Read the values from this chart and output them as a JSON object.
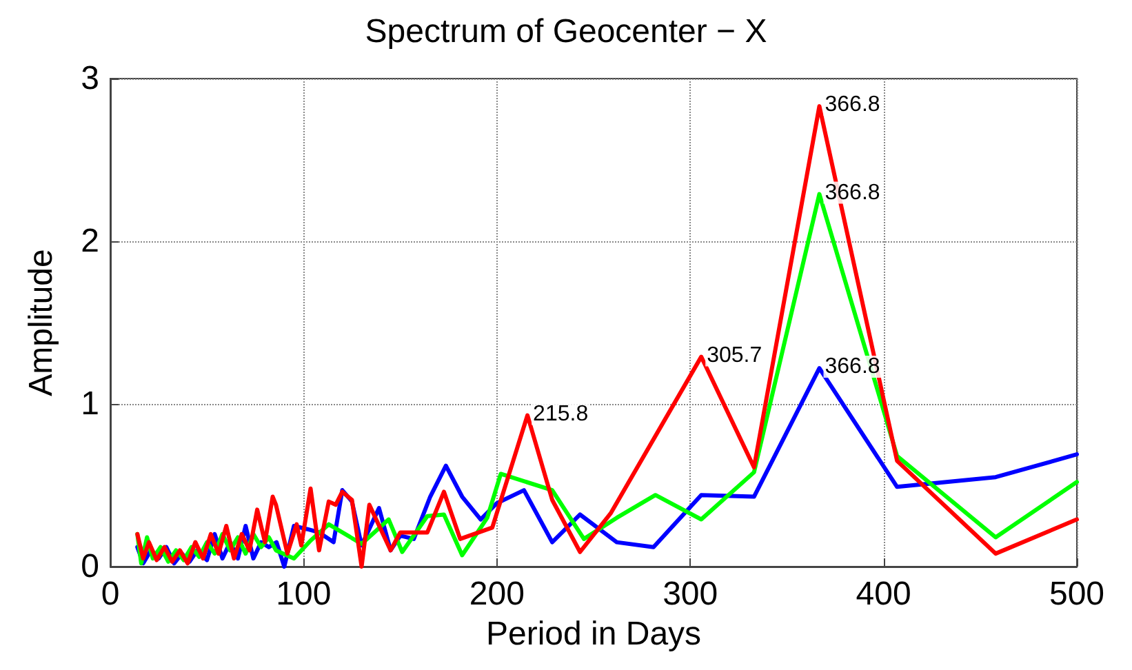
{
  "chart_data": {
    "type": "line",
    "title": "Spectrum of Geocenter − X",
    "xlabel": "Period in Days",
    "ylabel": "Amplitude",
    "xlim": [
      0,
      500
    ],
    "xticks": [
      0,
      100,
      200,
      300,
      400,
      500
    ],
    "ylim": [
      0,
      3
    ],
    "yticks": [
      0,
      1,
      2,
      3
    ],
    "grid": true,
    "marker": "none",
    "line_style": "solid",
    "series": [
      {
        "color": "#0000ff",
        "x": [
          14,
          17,
          21,
          25,
          29,
          33,
          37,
          41,
          45,
          50,
          54,
          58,
          62,
          66,
          70,
          74,
          78,
          82,
          86,
          90,
          95,
          102,
          108,
          115.5,
          120,
          125,
          130,
          139,
          145,
          150,
          157,
          165.5,
          173.6,
          182,
          191.6,
          200,
          214,
          228.6,
          243,
          262,
          281,
          305.7,
          333,
          366.8,
          407,
          458,
          500
        ],
        "values": [
          0.12,
          0.02,
          0.1,
          0.05,
          0.12,
          0.02,
          0.08,
          0.03,
          0.1,
          0.04,
          0.2,
          0.05,
          0.15,
          0.05,
          0.25,
          0.05,
          0.15,
          0.12,
          0.15,
          0.0,
          0.25,
          0.23,
          0.21,
          0.15,
          0.47,
          0.4,
          0.13,
          0.36,
          0.1,
          0.19,
          0.17,
          0.43,
          0.62,
          0.43,
          0.29,
          0.39,
          0.47,
          0.15,
          0.32,
          0.15,
          0.12,
          0.44,
          0.43,
          1.22,
          0.49,
          0.55,
          0.69
        ]
      },
      {
        "color": "#00ff00",
        "x": [
          14,
          16,
          19,
          22,
          26,
          30,
          34,
          38,
          42,
          46,
          50,
          54,
          58,
          62,
          66,
          70,
          74,
          78,
          82,
          85.7,
          95,
          103.6,
          113,
          130,
          144,
          151,
          164,
          172.6,
          182,
          195,
          202,
          228.6,
          245,
          262,
          282,
          305.7,
          333,
          366.8,
          407,
          458,
          500
        ],
        "values": [
          0.2,
          0.02,
          0.18,
          0.05,
          0.12,
          0.03,
          0.1,
          0.04,
          0.12,
          0.06,
          0.15,
          0.08,
          0.2,
          0.1,
          0.18,
          0.08,
          0.2,
          0.12,
          0.18,
          0.1,
          0.05,
          0.16,
          0.26,
          0.14,
          0.29,
          0.09,
          0.31,
          0.32,
          0.07,
          0.3,
          0.57,
          0.47,
          0.17,
          0.3,
          0.44,
          0.29,
          0.58,
          2.29,
          0.68,
          0.18,
          0.52
        ]
      },
      {
        "color": "#ff0000",
        "x": [
          14,
          17,
          20,
          24,
          28,
          32,
          36,
          40,
          44,
          48,
          52,
          56,
          60,
          64,
          68,
          72,
          76,
          80,
          84,
          85.7,
          91.6,
          96.4,
          98.8,
          103.6,
          108,
          113,
          116.6,
          120,
          125,
          130,
          134,
          145,
          150,
          164,
          172.6,
          181,
          197.6,
          215.8,
          228.6,
          243,
          259,
          305.7,
          333,
          366.8,
          407,
          458,
          500
        ],
        "values": [
          0.2,
          0.05,
          0.15,
          0.04,
          0.12,
          0.03,
          0.1,
          0.02,
          0.15,
          0.05,
          0.2,
          0.08,
          0.25,
          0.05,
          0.2,
          0.1,
          0.35,
          0.15,
          0.43,
          0.38,
          0.08,
          0.26,
          0.13,
          0.48,
          0.1,
          0.4,
          0.38,
          0.46,
          0.41,
          0.0,
          0.38,
          0.1,
          0.21,
          0.21,
          0.46,
          0.17,
          0.24,
          0.93,
          0.41,
          0.09,
          0.33,
          1.29,
          0.61,
          2.83,
          0.65,
          0.08,
          0.29
        ]
      }
    ],
    "annotations": [
      {
        "text": "215.8",
        "x": 215.8,
        "y": 0.93
      },
      {
        "text": "305.7",
        "x": 305.7,
        "y": 1.29
      },
      {
        "text": "366.8",
        "x": 366.8,
        "y": 2.83
      },
      {
        "text": "366.8",
        "x": 366.8,
        "y": 2.29
      },
      {
        "text": "366.8",
        "x": 366.8,
        "y": 1.22
      }
    ]
  }
}
